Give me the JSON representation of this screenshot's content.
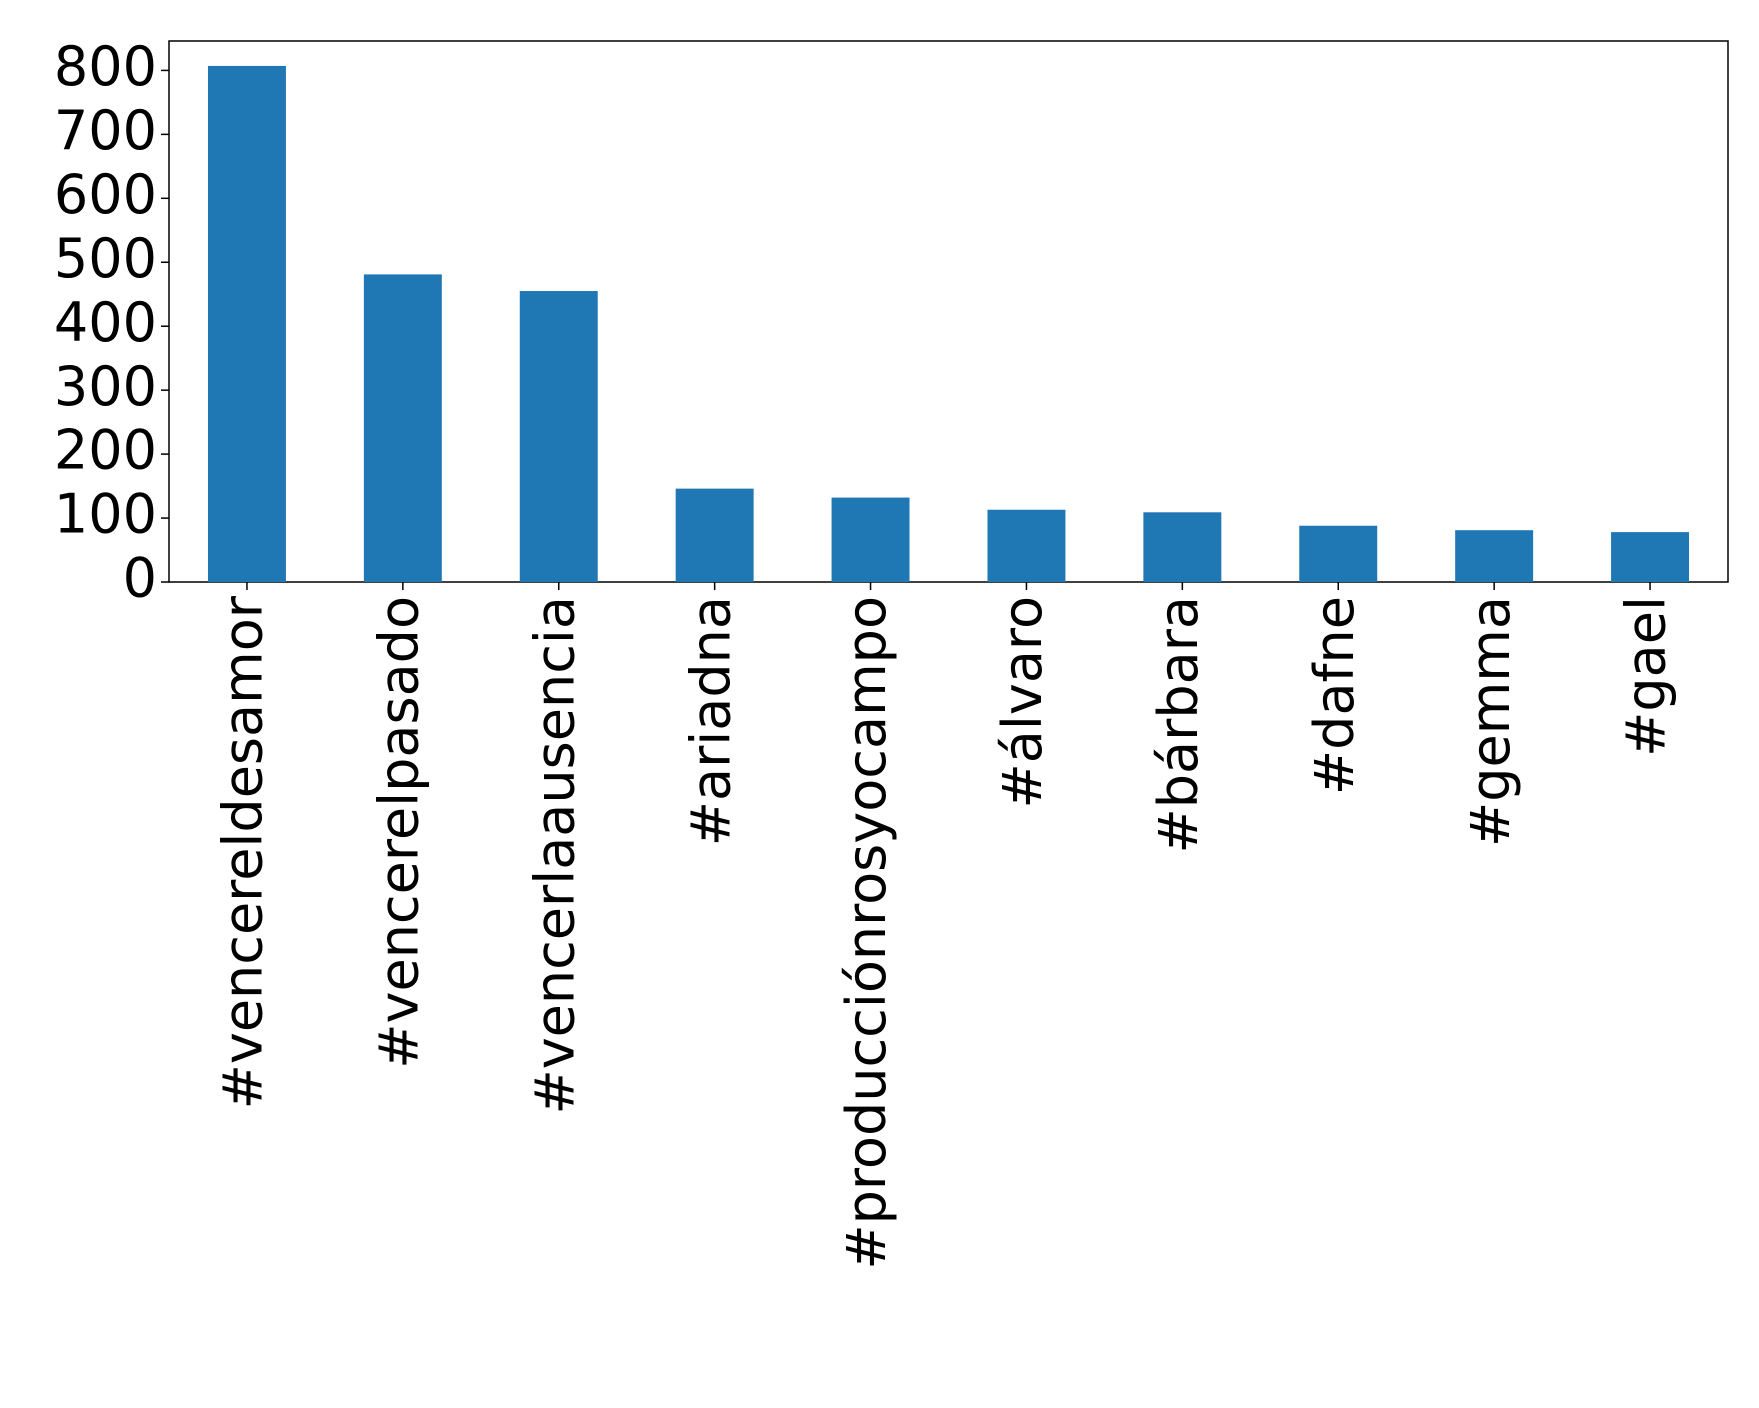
{
  "chart_data": {
    "type": "bar",
    "categories": [
      "#vencereldesamor",
      "#vencerelpasado",
      "#vencerlaausencia",
      "#ariadna",
      "#producciónrosyocampo",
      "#álvaro",
      "#bárbara",
      "#dafne",
      "#gemma",
      "#gael"
    ],
    "values": [
      807,
      481,
      455,
      146,
      132,
      113,
      109,
      88,
      81,
      78
    ],
    "color": "#1f77b4",
    "ylim": [
      0,
      846
    ],
    "yticks": [
      0,
      100,
      200,
      300,
      400,
      500,
      600,
      700,
      800
    ],
    "grid": false
  }
}
